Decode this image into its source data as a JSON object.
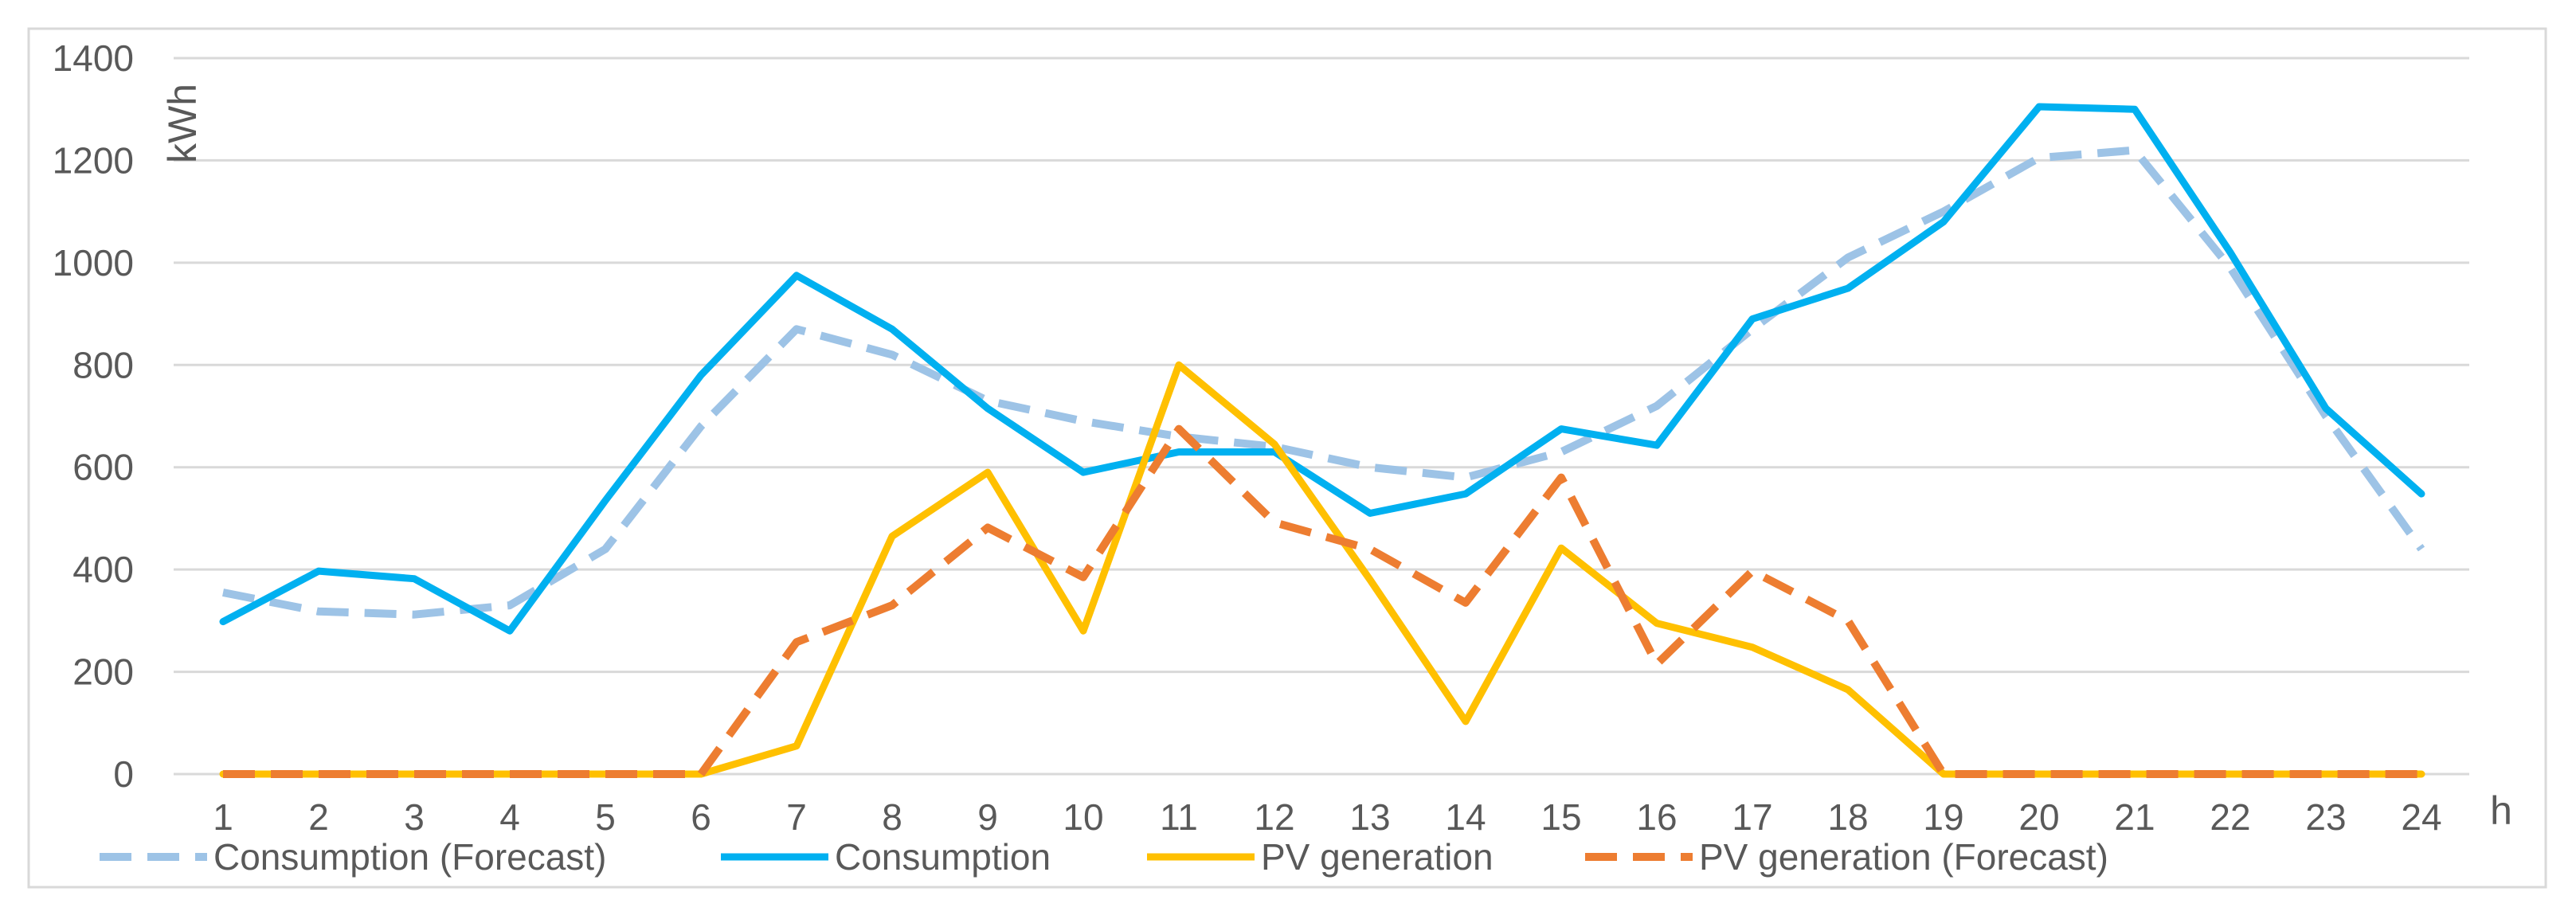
{
  "chart_data": {
    "type": "line",
    "title": "",
    "xlabel": "h",
    "ylabel": "kWh",
    "ylim": [
      0,
      1400
    ],
    "yticks": [
      0,
      200,
      400,
      600,
      800,
      1000,
      1200,
      1400
    ],
    "categories": [
      "1",
      "2",
      "3",
      "4",
      "5",
      "6",
      "7",
      "8",
      "9",
      "10",
      "11",
      "12",
      "13",
      "14",
      "15",
      "16",
      "17",
      "18",
      "19",
      "20",
      "21",
      "22",
      "23",
      "24"
    ],
    "grid": true,
    "legend_position": "bottom",
    "series": [
      {
        "name": "Consumption (Forecast)",
        "color": "#9dc3e6",
        "style": "dashed",
        "values": [
          355,
          318,
          312,
          330,
          440,
          680,
          870,
          820,
          730,
          690,
          660,
          640,
          600,
          580,
          630,
          720,
          870,
          1010,
          1100,
          1205,
          1220,
          990,
          700,
          440
        ]
      },
      {
        "name": "Consumption",
        "color": "#00b0f0",
        "style": "solid",
        "values": [
          298,
          397,
          382,
          280,
          535,
          780,
          975,
          870,
          715,
          590,
          630,
          630,
          510,
          548,
          675,
          643,
          890,
          950,
          1080,
          1305,
          1300,
          1020,
          715,
          548
        ]
      },
      {
        "name": "PV generation",
        "color": "#ffc000",
        "style": "solid",
        "values": [
          0,
          0,
          0,
          0,
          0,
          0,
          55,
          465,
          590,
          280,
          800,
          645,
          380,
          103,
          442,
          295,
          248,
          165,
          0,
          0,
          0,
          0,
          0,
          0
        ]
      },
      {
        "name": "PV generation (Forecast)",
        "color": "#ed7d31",
        "style": "dashed",
        "values": [
          0,
          0,
          0,
          0,
          0,
          0,
          258,
          330,
          482,
          385,
          675,
          492,
          440,
          335,
          580,
          215,
          397,
          300,
          0,
          0,
          0,
          0,
          0,
          0
        ]
      }
    ]
  }
}
